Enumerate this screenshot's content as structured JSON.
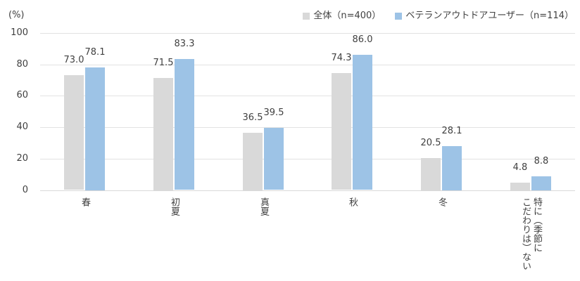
{
  "chart_data": {
    "type": "bar",
    "title": "",
    "y_unit": "(%)",
    "categories": [
      "春",
      "初夏",
      "真夏",
      "秋",
      "冬",
      "特に（季節に\nこだわりは）ない"
    ],
    "series": [
      {
        "name": "全体（n=400）",
        "color": "#d9d9d9",
        "values": [
          73.0,
          71.5,
          36.5,
          74.3,
          20.5,
          4.8
        ]
      },
      {
        "name": "ベテランアウトドアユーザー（n=114）",
        "color": "#9dc3e6",
        "values": [
          78.1,
          83.3,
          39.5,
          86.0,
          28.1,
          8.8
        ]
      }
    ],
    "value_labels": [
      [
        "73.0",
        "71.5",
        "36.5",
        "74.3",
        "20.5",
        "4.8"
      ],
      [
        "78.1",
        "83.3",
        "39.5",
        "86.0",
        "28.1",
        "8.8"
      ]
    ],
    "ylim": [
      0,
      100
    ],
    "yticks": [
      0,
      20,
      40,
      60,
      80,
      100
    ],
    "grid": true,
    "legend_position": "top-right",
    "colors": {
      "text": "#404040",
      "gridline": "#e2e2e2",
      "axis_line": "#d9d9d9",
      "background": "#ffffff"
    }
  }
}
